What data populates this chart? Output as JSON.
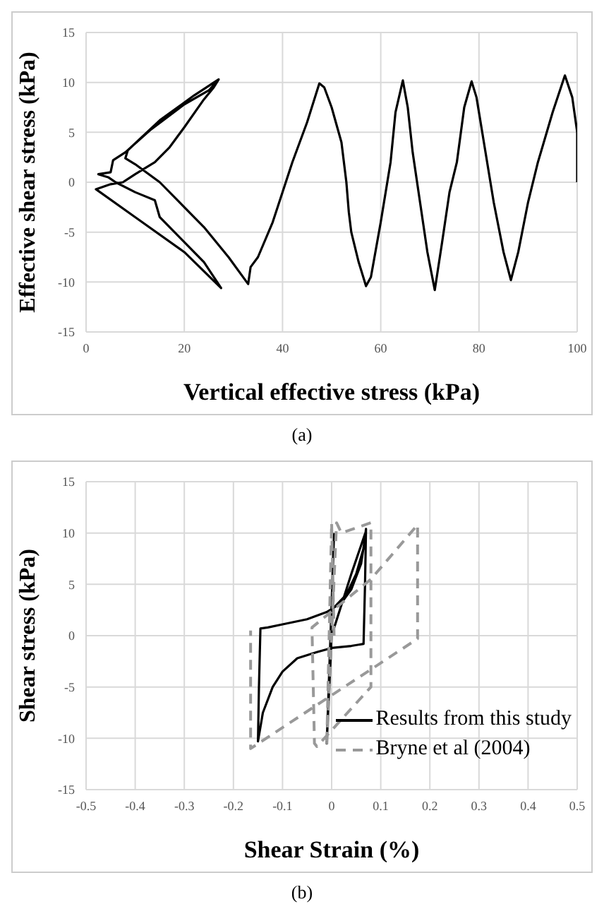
{
  "chart_data": [
    {
      "type": "line",
      "xlabel": "Vertical effective stress (kPa)",
      "ylabel": "Effective shear stress (kPa)",
      "xlim": [
        0,
        100
      ],
      "xticks": [
        0,
        20,
        40,
        60,
        80,
        100
      ],
      "ylim": [
        -15,
        15
      ],
      "yticks": [
        -15,
        -10,
        -5,
        0,
        5,
        10,
        15
      ],
      "grid": true,
      "marker": "none",
      "legend": false,
      "annotations": [
        "(a)"
      ],
      "series": [
        {
          "color": "#000000",
          "line_style": "solid",
          "x": [
            100,
            100,
            99,
            97.5,
            95,
            92,
            90,
            88,
            86.5,
            85,
            83,
            81,
            79.5,
            78.5,
            77,
            75.5,
            74.5,
            74,
            72.5,
            71,
            69.5,
            68,
            66.5,
            65.5,
            64.5,
            63,
            62,
            60,
            58,
            57,
            55.5,
            54,
            53.5,
            53,
            52,
            50,
            48.5,
            47.5,
            45,
            42,
            38,
            35,
            33.5,
            33,
            29,
            24,
            20,
            15,
            10,
            8,
            8.5,
            15,
            22,
            27,
            26,
            24,
            20,
            17,
            14,
            10,
            7.5,
            5,
            2,
            10,
            20,
            27.5,
            24,
            21,
            18,
            15,
            14,
            10,
            6,
            4.5,
            2.5,
            5,
            5.5,
            8,
            13,
            20,
            25,
            27
          ],
          "values": [
            0,
            5,
            8.5,
            10.7,
            7,
            2,
            -2,
            -7,
            -9.8,
            -7,
            -2,
            4,
            8.5,
            10.1,
            7.5,
            2,
            0,
            -1,
            -6,
            -10.8,
            -7,
            -2,
            3,
            7.5,
            10.2,
            7,
            2,
            -4,
            -9.5,
            -10.4,
            -8,
            -5,
            -3,
            0,
            4,
            7.5,
            9.5,
            9.9,
            6,
            2,
            -4,
            -7.5,
            -8.5,
            -10.2,
            -7.5,
            -4.5,
            -2.5,
            0,
            1.8,
            2.4,
            3.2,
            6.2,
            8.7,
            10.3,
            9.5,
            8.3,
            5.5,
            3.5,
            2,
            0.8,
            0,
            -0.2,
            -0.7,
            -3.5,
            -7,
            -10.6,
            -8,
            -6.5,
            -5,
            -3.5,
            -1.8,
            -1,
            0,
            0.5,
            0.8,
            1,
            2.2,
            3,
            5.2,
            7.8,
            9.2,
            10.3
          ]
        }
      ]
    },
    {
      "type": "line",
      "xlabel": "Shear Strain (%)",
      "ylabel": "Shear stress  (kPa)",
      "xlim": [
        -0.5,
        0.5
      ],
      "xticks": [
        -0.5,
        -0.4,
        -0.3,
        -0.2,
        -0.1,
        0,
        0.1,
        0.2,
        0.3,
        0.4,
        0.5
      ],
      "ylim": [
        -15,
        15
      ],
      "yticks": [
        -15,
        -10,
        -5,
        0,
        5,
        10,
        15
      ],
      "grid": true,
      "marker": "none",
      "legend": "bottom right",
      "annotations": [
        "(b)"
      ],
      "series": [
        {
          "name": "Results from this study",
          "color": "#000000",
          "line_style": "solid",
          "x": [
            0,
            0.03,
            0.05,
            0.065,
            0.07,
            0.068,
            0.065,
            0.04,
            0,
            -0.03,
            -0.07,
            -0.1,
            -0.12,
            -0.14,
            -0.15,
            -0.148,
            -0.145,
            -0.13,
            -0.1,
            -0.05,
            -0.01,
            0.02,
            0.04,
            0.06,
            0.07,
            0.04,
            0,
            -0.01,
            0.005
          ],
          "values": [
            2.5,
            4,
            6,
            8.5,
            10.4,
            5,
            -0.8,
            -1,
            -1.2,
            -1.6,
            -2.2,
            -3.5,
            -5,
            -7.5,
            -10.3,
            -5,
            0.7,
            0.8,
            1.1,
            1.6,
            2.3,
            3.2,
            4.5,
            7,
            10.2,
            6,
            0,
            -10.5,
            10
          ]
        },
        {
          "name": "Bryne et al (2004)",
          "color": "#999999",
          "line_style": "dashed",
          "x": [
            0.005,
            0,
            -0.01,
            0.01,
            0.02,
            0.08,
            0.08,
            -0.03,
            -0.035,
            -0.04,
            0.08,
            0.175,
            0.175,
            -0.165,
            -0.165
          ],
          "values": [
            0,
            11,
            -10.8,
            11,
            10,
            11,
            -5,
            -10.8,
            -10.5,
            0.8,
            5.5,
            10.8,
            -0.3,
            -11,
            0.5
          ]
        }
      ]
    }
  ]
}
